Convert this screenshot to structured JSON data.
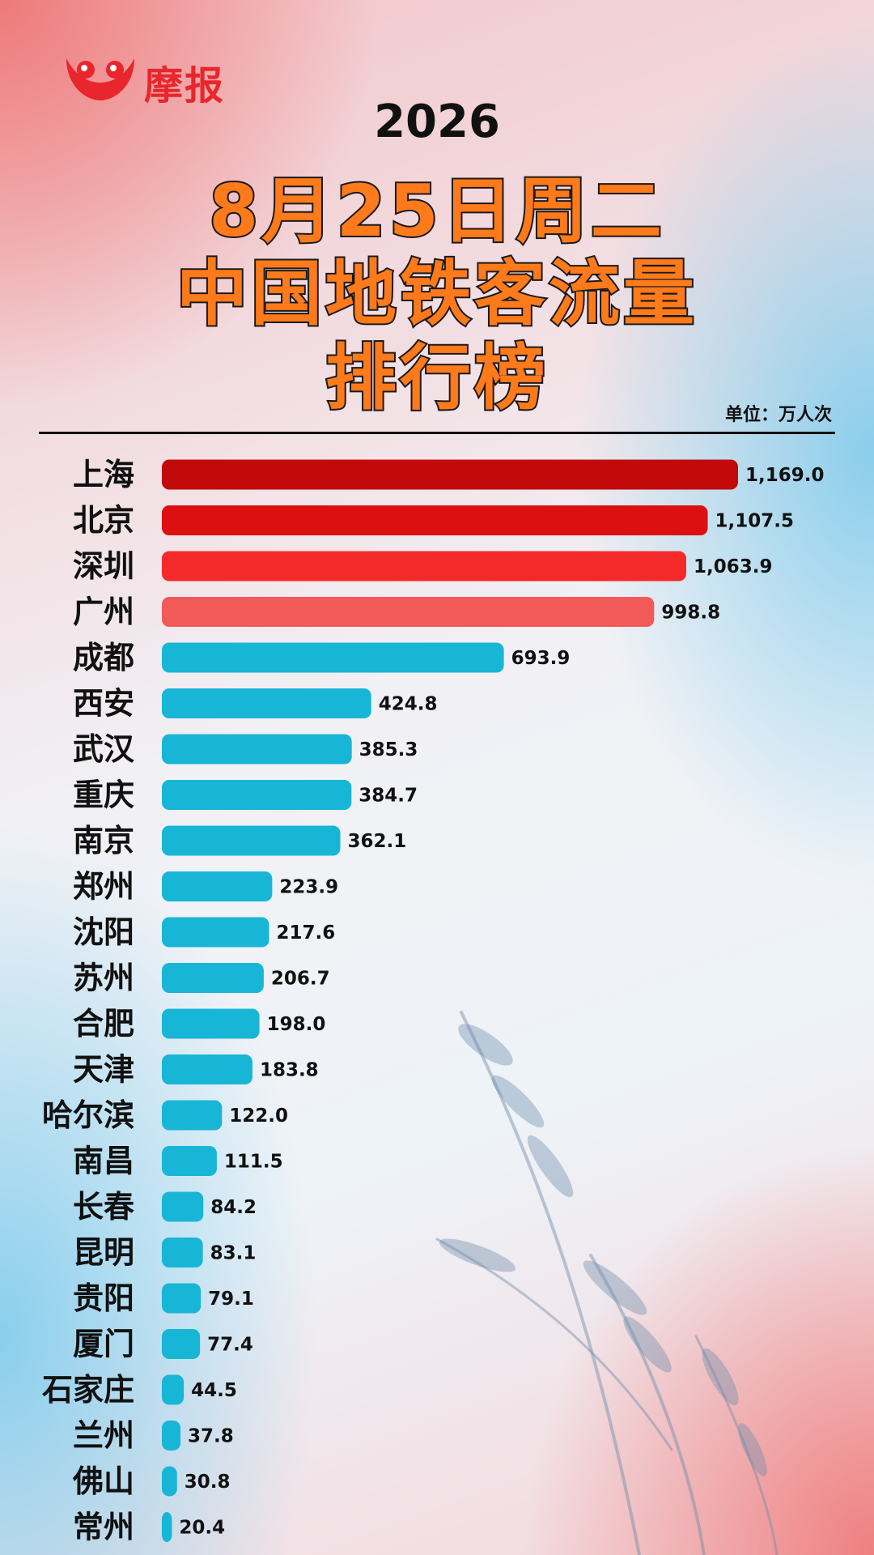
{
  "brand": {
    "logo_text": "摩报",
    "logo_icon": "moobao-logo-icon",
    "color": "#e8262c"
  },
  "title": {
    "year": "2026",
    "line1": "8月25日周二",
    "line2": "中国地铁客流量",
    "line3": "排行榜"
  },
  "unit_label": "单位：万人次",
  "colors": {
    "top1": "#c20a0a",
    "top2": "#dc1010",
    "top3": "#f42a2a",
    "top4": "#f25a5a",
    "rest": "#18b6d6",
    "title_fill": "#ff7a1a"
  },
  "chart_data": {
    "type": "bar",
    "orientation": "horizontal",
    "title": "中国地铁客流量排行榜",
    "unit": "万人次",
    "categories": [
      "上海",
      "北京",
      "深圳",
      "广州",
      "成都",
      "西安",
      "武汉",
      "重庆",
      "南京",
      "郑州",
      "沈阳",
      "苏州",
      "合肥",
      "天津",
      "哈尔滨",
      "南昌",
      "长春",
      "昆明",
      "贵阳",
      "厦门",
      "石家庄",
      "兰州",
      "佛山",
      "常州"
    ],
    "values": [
      1169.0,
      1107.5,
      1063.9,
      998.8,
      693.9,
      424.8,
      385.3,
      384.7,
      362.1,
      223.9,
      217.6,
      206.7,
      198.0,
      183.8,
      122.0,
      111.5,
      84.2,
      83.1,
      79.1,
      77.4,
      44.5,
      37.8,
      30.8,
      20.4
    ],
    "value_labels": [
      "1,169.0",
      "1,107.5",
      "1,063.9",
      "998.8",
      "693.9",
      "424.8",
      "385.3",
      "384.7",
      "362.1",
      "223.9",
      "217.6",
      "206.7",
      "198.0",
      "183.8",
      "122.0",
      "111.5",
      "84.2",
      "83.1",
      "79.1",
      "77.4",
      "44.5",
      "37.8",
      "30.8",
      "20.4"
    ],
    "grid": false,
    "legend": "none"
  }
}
